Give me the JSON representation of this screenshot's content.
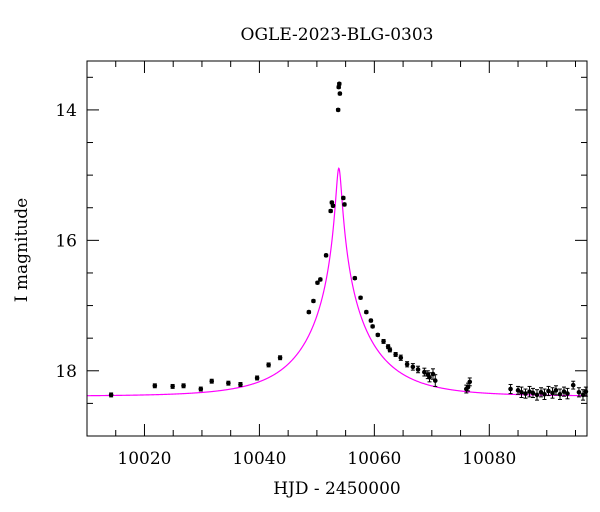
{
  "chart_data": {
    "type": "scatter",
    "title": "OGLE-2023-BLG-0303",
    "xlabel": "HJD - 2450000",
    "ylabel": "I magnitude",
    "xlim": [
      10010,
      10097
    ],
    "ylim": [
      19.0,
      13.25
    ],
    "y_inverted": true,
    "grid": false,
    "x_major_ticks": [
      10020,
      10040,
      10060,
      10080
    ],
    "x_minor_step": 5,
    "y_major_ticks": [
      14,
      16,
      18
    ],
    "y_minor_step": 0.5,
    "colors": {
      "model": "#ff00ff",
      "points": "#000000",
      "axes": "#000000"
    },
    "series": [
      {
        "kind": "points",
        "x": [
          10014.2,
          10021.8,
          10024.9,
          10026.8,
          10029.8,
          10031.7,
          10034.6,
          10036.7,
          10039.6,
          10041.6,
          10043.6,
          10048.6,
          10049.4,
          10050.1,
          10050.6,
          10051.6,
          10052.4,
          10052.6,
          10052.8,
          10053.7,
          10053.8,
          10053.9,
          10054.0,
          10054.6,
          10054.8,
          10056.6,
          10057.6,
          10058.6,
          10059.4,
          10059.7,
          10060.6,
          10061.6,
          10062.4,
          10062.7,
          10063.7,
          10064.6,
          10065.7,
          10066.7,
          10067.6,
          10068.7,
          10069.3,
          10069.6,
          10070.2,
          10070.6,
          10076.0,
          10076.3,
          10076.6,
          10083.7,
          10085.0,
          10085.6,
          10086.3,
          10087.0,
          10087.6,
          10088.3,
          10089.0,
          10089.6,
          10090.3,
          10091.0,
          10091.6,
          10092.3,
          10093.0,
          10093.6,
          10094.6,
          10095.6,
          10096.3,
          10096.8
        ],
        "y": [
          18.37,
          18.23,
          18.24,
          18.23,
          18.28,
          18.16,
          18.19,
          18.21,
          18.11,
          17.91,
          17.8,
          17.1,
          16.93,
          16.65,
          16.6,
          16.23,
          15.55,
          15.42,
          15.47,
          14.0,
          13.65,
          13.6,
          13.75,
          15.35,
          15.45,
          16.58,
          16.88,
          17.1,
          17.23,
          17.32,
          17.45,
          17.55,
          17.63,
          17.68,
          17.75,
          17.8,
          17.9,
          17.94,
          17.98,
          18.02,
          18.06,
          18.1,
          18.05,
          18.15,
          18.28,
          18.25,
          18.17,
          18.28,
          18.3,
          18.33,
          18.35,
          18.32,
          18.34,
          18.37,
          18.33,
          18.36,
          18.31,
          18.34,
          18.3,
          18.36,
          18.32,
          18.35,
          18.22,
          18.33,
          18.37,
          18.32
        ],
        "yerr": [
          0.03,
          0.03,
          0.03,
          0.03,
          0.03,
          0.03,
          0.03,
          0.03,
          0.03,
          0.03,
          0.03,
          0.02,
          0.02,
          0.02,
          0.02,
          0.02,
          0.02,
          0.02,
          0.02,
          0.02,
          0.02,
          0.02,
          0.02,
          0.02,
          0.02,
          0.02,
          0.02,
          0.02,
          0.02,
          0.02,
          0.02,
          0.03,
          0.03,
          0.03,
          0.03,
          0.04,
          0.04,
          0.05,
          0.05,
          0.06,
          0.06,
          0.07,
          0.08,
          0.09,
          0.06,
          0.06,
          0.06,
          0.07,
          0.06,
          0.08,
          0.07,
          0.08,
          0.07,
          0.08,
          0.07,
          0.08,
          0.07,
          0.08,
          0.07,
          0.08,
          0.07,
          0.08,
          0.06,
          0.07,
          0.08,
          0.07
        ]
      },
      {
        "kind": "model",
        "t0": 10053.82,
        "tE": 11.5,
        "u0": 0.04,
        "I_base": 18.39,
        "x_range": [
          10010,
          10097
        ]
      }
    ]
  }
}
